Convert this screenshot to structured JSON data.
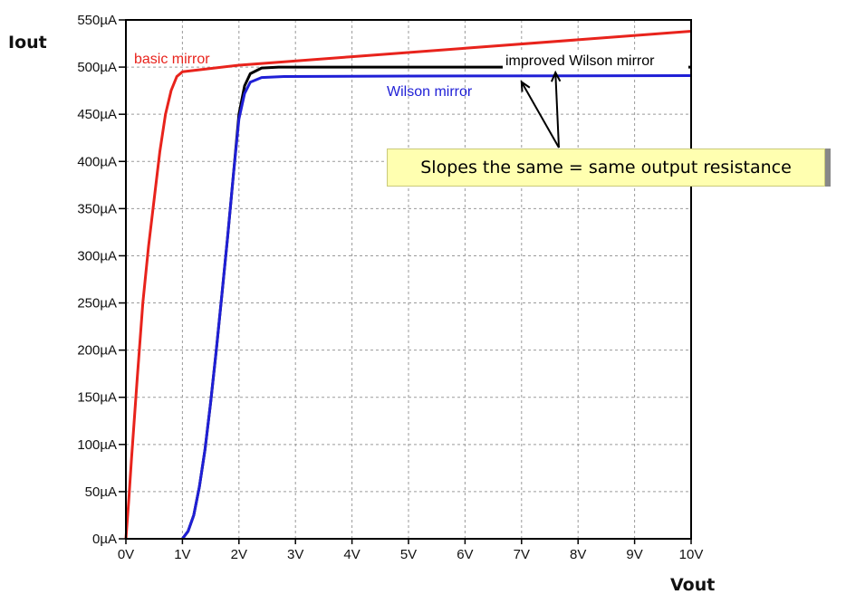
{
  "chart_data": {
    "type": "line",
    "xlabel": "Vout",
    "ylabel": "Iout",
    "xlim": [
      0,
      10
    ],
    "ylim": [
      0,
      550
    ],
    "x_ticks": [
      "0V",
      "1V",
      "2V",
      "3V",
      "4V",
      "5V",
      "6V",
      "7V",
      "8V",
      "9V",
      "10V"
    ],
    "y_ticks": [
      "0µA",
      "50µA",
      "100µA",
      "150µA",
      "200µA",
      "250µA",
      "300µA",
      "350µA",
      "400µA",
      "450µA",
      "500µA",
      "550µA"
    ],
    "grid": true,
    "series": [
      {
        "name": "basic mirror",
        "color": "#e8231c",
        "points": [
          [
            0,
            0
          ],
          [
            0.05,
            40
          ],
          [
            0.1,
            85
          ],
          [
            0.2,
            170
          ],
          [
            0.3,
            250
          ],
          [
            0.4,
            310
          ],
          [
            0.5,
            360
          ],
          [
            0.6,
            410
          ],
          [
            0.7,
            450
          ],
          [
            0.8,
            475
          ],
          [
            0.9,
            490
          ],
          [
            1.0,
            495
          ],
          [
            2,
            502
          ],
          [
            4,
            511
          ],
          [
            6,
            520
          ],
          [
            8,
            529
          ],
          [
            10,
            538
          ]
        ]
      },
      {
        "name": "improved Wilson mirror",
        "color": "#000000",
        "points": [
          [
            1.0,
            0
          ],
          [
            1.1,
            8
          ],
          [
            1.2,
            25
          ],
          [
            1.3,
            55
          ],
          [
            1.4,
            95
          ],
          [
            1.5,
            145
          ],
          [
            1.6,
            200
          ],
          [
            1.7,
            260
          ],
          [
            1.8,
            320
          ],
          [
            1.9,
            385
          ],
          [
            2.0,
            450
          ],
          [
            2.1,
            480
          ],
          [
            2.2,
            493
          ],
          [
            2.4,
            499
          ],
          [
            2.7,
            500
          ],
          [
            5,
            500
          ],
          [
            10,
            500
          ]
        ]
      },
      {
        "name": "Wilson mirror",
        "color": "#1f1fd6",
        "points": [
          [
            1.0,
            0
          ],
          [
            1.1,
            8
          ],
          [
            1.2,
            25
          ],
          [
            1.3,
            55
          ],
          [
            1.4,
            95
          ],
          [
            1.5,
            145
          ],
          [
            1.6,
            200
          ],
          [
            1.7,
            260
          ],
          [
            1.8,
            320
          ],
          [
            1.9,
            385
          ],
          [
            2.0,
            445
          ],
          [
            2.1,
            472
          ],
          [
            2.2,
            484
          ],
          [
            2.4,
            489
          ],
          [
            2.8,
            490
          ],
          [
            5,
            490.5
          ],
          [
            10,
            491
          ]
        ]
      }
    ],
    "annotations": [
      {
        "text": "Slopes the same = same output resistance",
        "arrow_targets": [
          [
            7.0,
            490
          ],
          [
            7.6,
            500
          ]
        ]
      }
    ]
  }
}
